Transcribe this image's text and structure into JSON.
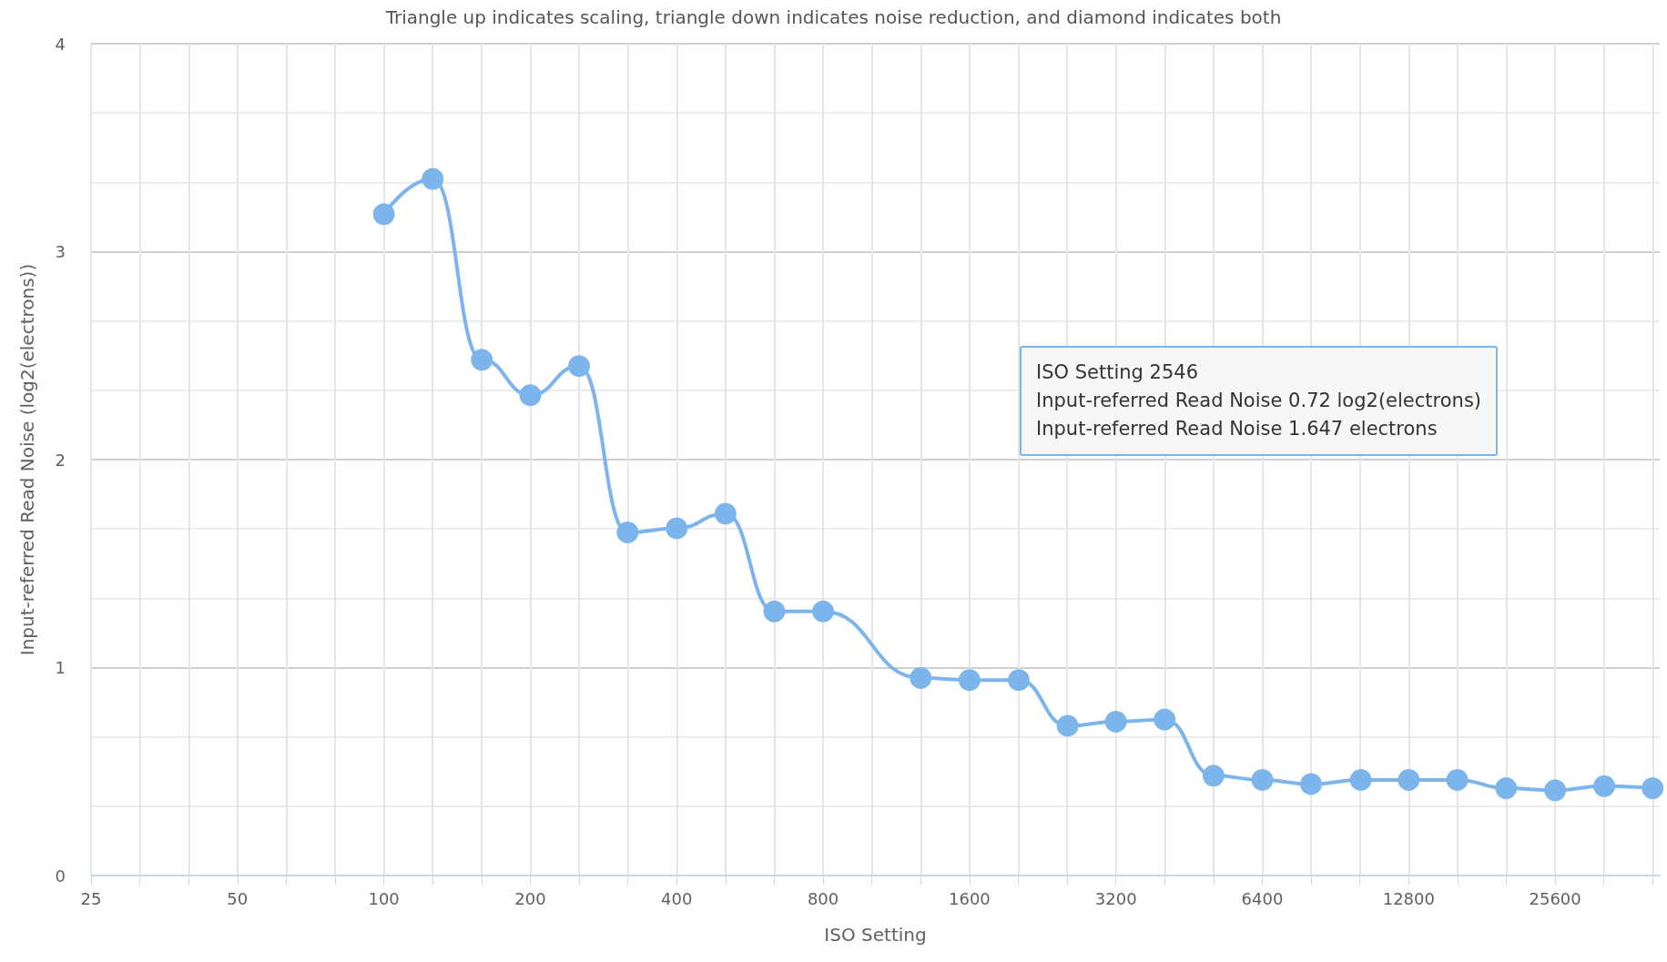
{
  "chart_data": {
    "type": "line",
    "title": "Triangle up indicates scaling, triangle down indicates noise reduction, and diamond indicates both",
    "xlabel": "ISO Setting",
    "ylabel": "Input-referred Read Noise (log2(electrons))",
    "annotations": [
      "ISO Setting 2546",
      "Input-referred Read Noise 0.72 log2(electrons)",
      "Input-referred Read Noise 1.647 electrons"
    ],
    "x": [
      100,
      126,
      159,
      200,
      252,
      317,
      400,
      504,
      635,
      800,
      1010,
      1270,
      1600,
      2020,
      2546,
      3200,
      4030,
      5080,
      6400,
      8060,
      10200,
      12800,
      16100,
      20300,
      25600,
      32300,
      40600
    ],
    "series": [
      {
        "color": "#7cb5ec",
        "values": [
          3.18,
          3.35,
          2.48,
          2.31,
          2.45,
          1.65,
          1.67,
          1.74,
          1.27,
          1.27,
          null,
          0.95,
          0.94,
          0.94,
          0.72,
          0.74,
          0.75,
          0.48,
          0.46,
          0.44,
          0.46,
          0.46,
          0.46,
          0.42,
          0.41,
          0.43,
          0.42
        ]
      }
    ],
    "log": "x",
    "xlim": [
      25,
      42000
    ],
    "xticks": [
      25,
      {
        "value": 31.5,
        "label": null
      },
      {
        "value": 39.7,
        "label": null
      },
      50,
      {
        "value": 63,
        "label": null
      },
      {
        "value": 79.4,
        "label": null
      },
      100,
      {
        "value": 126,
        "label": null
      },
      {
        "value": 159,
        "label": null
      },
      200,
      {
        "value": 252,
        "label": null
      },
      {
        "value": 317,
        "label": null
      },
      400,
      {
        "value": 504,
        "label": null
      },
      {
        "value": 635,
        "label": null
      },
      800,
      {
        "value": 1008,
        "label": null
      },
      {
        "value": 1270,
        "label": null
      },
      1600,
      {
        "value": 2016,
        "label": null
      },
      {
        "value": 2540,
        "label": null
      },
      3200,
      {
        "value": 4032,
        "label": null
      },
      {
        "value": 5080,
        "label": null
      },
      6400,
      {
        "value": 8063,
        "label": null
      },
      {
        "value": 10159,
        "label": null
      },
      12800,
      {
        "value": 16127,
        "label": null
      },
      {
        "value": 20319,
        "label": null
      },
      25600,
      {
        "value": 32254,
        "label": null
      },
      {
        "value": 40637,
        "label": null
      }
    ],
    "ylim": [
      0,
      4
    ],
    "yticks": [
      0,
      1,
      2,
      3,
      4
    ],
    "grid": true,
    "marker": "circle",
    "line_style": "solid"
  }
}
